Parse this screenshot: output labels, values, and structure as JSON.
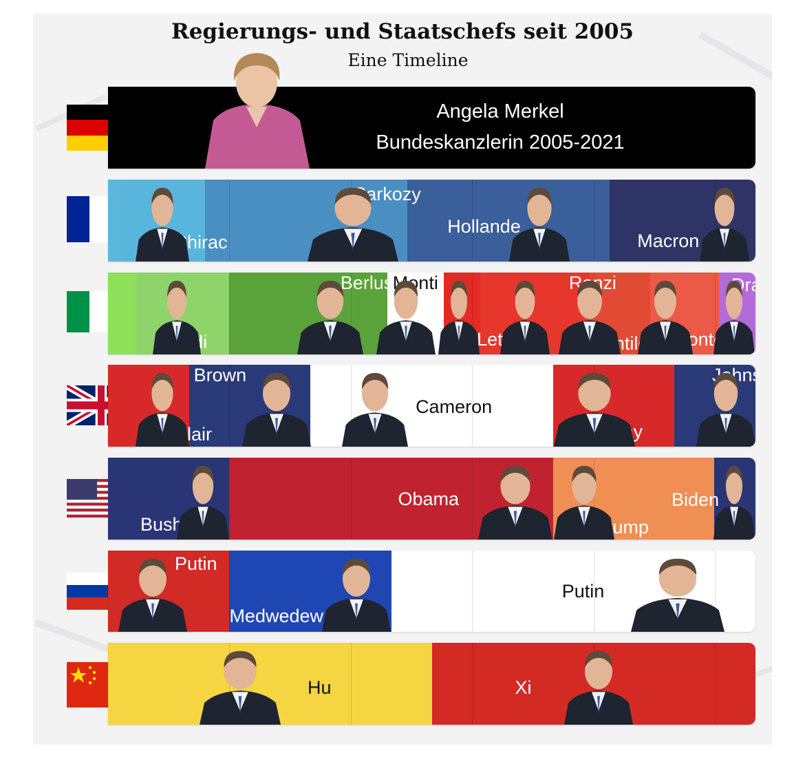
{
  "title": "Regierungs- und Staatschefs seit 2005",
  "subtitle": "Eine Timeline",
  "chart_data": {
    "type": "timeline",
    "title": "Regierungs- und Staatschefs seit 2005",
    "subtitle": "Eine Timeline",
    "countries": [
      {
        "flag": "germany",
        "leaders": [
          {
            "label": "Angela Merkel",
            "sublabel": "Bundeskanzlerin 2005-2021",
            "start": 2005.0,
            "end": 2021.0,
            "color": "#000000"
          }
        ]
      },
      {
        "flag": "france",
        "leaders": [
          {
            "label": "",
            "start": 2005.0,
            "end": 2005.4,
            "color": "#5bb8dc"
          },
          {
            "label": "Chirac",
            "start": 2005.4,
            "end": 2007.4,
            "color": "#58b5db"
          },
          {
            "label": "Sarkozy",
            "start": 2007.4,
            "end": 2012.4,
            "color": "#4a8fc2"
          },
          {
            "label": "Hollande",
            "start": 2012.4,
            "end": 2017.4,
            "color": "#3a5f9a"
          },
          {
            "label": "Macron",
            "start": 2017.4,
            "end": 2021.0,
            "color": "#2e3566"
          }
        ]
      },
      {
        "flag": "italy",
        "leaders": [
          {
            "label": "",
            "start": 2005.0,
            "end": 2005.7,
            "color": "#8fe05a"
          },
          {
            "label": "Prodi",
            "start": 2005.7,
            "end": 2008.0,
            "color": "#8fd46a"
          },
          {
            "label": "Berlusconi",
            "start": 2008.0,
            "end": 2011.9,
            "color": "#5aa33a"
          },
          {
            "label": "Monti",
            "start": 2011.9,
            "end": 2013.3,
            "color": "#ffffff"
          },
          {
            "label": "Letta",
            "start": 2013.3,
            "end": 2014.2,
            "color": "#e42a24"
          },
          {
            "label": "Renzi",
            "start": 2014.2,
            "end": 2016.9,
            "color": "#e7362c"
          },
          {
            "label": "Gentiloni",
            "start": 2016.9,
            "end": 2018.4,
            "color": "#e14a33"
          },
          {
            "label": "Conte",
            "start": 2018.4,
            "end": 2020.1,
            "color": "#eb5a46"
          },
          {
            "label": "Draghi",
            "start": 2020.1,
            "end": 2021.0,
            "color": "#b46ad8"
          }
        ]
      },
      {
        "flag": "uk",
        "leaders": [
          {
            "label": "Blair",
            "start": 2005.0,
            "end": 2007.0,
            "color": "#d8292a"
          },
          {
            "label": "Brown",
            "start": 2007.0,
            "end": 2010.0,
            "color": "#2a3a78"
          },
          {
            "label": "Cameron",
            "start": 2010.0,
            "end": 2016.0,
            "color": "#ffffff"
          },
          {
            "label": "May",
            "start": 2016.0,
            "end": 2019.0,
            "color": "#d8292a"
          },
          {
            "label": "Johnson",
            "start": 2019.0,
            "end": 2021.0,
            "color": "#2a3a78"
          }
        ]
      },
      {
        "flag": "usa",
        "leaders": [
          {
            "label": "Bush",
            "start": 2005.0,
            "end": 2008.0,
            "color": "#2a3576"
          },
          {
            "label": "Obama",
            "start": 2008.0,
            "end": 2016.0,
            "color": "#c0232f"
          },
          {
            "label": "Trump",
            "start": 2016.0,
            "end": 2021.0,
            "color": "#ef8f53"
          },
          {
            "label": "Biden",
            "start": 2021.0,
            "end": 2021.0,
            "color": "#2a3576"
          }
        ]
      },
      {
        "flag": "russia",
        "leaders": [
          {
            "label": "Putin",
            "start": 2005.0,
            "end": 2008.0,
            "color": "#d22a25"
          },
          {
            "label": "Medwedew",
            "start": 2008.0,
            "end": 2012.0,
            "color": "#1e47b4"
          },
          {
            "label": "Putin",
            "start": 2012.0,
            "end": 2021.0,
            "color": "#ffffff"
          }
        ]
      },
      {
        "flag": "china",
        "leaders": [
          {
            "label": "Hu",
            "start": 2005.0,
            "end": 2013.0,
            "color": "#f5d542"
          },
          {
            "label": "Xi",
            "start": 2013.0,
            "end": 2021.0,
            "color": "#d42a24"
          }
        ]
      }
    ]
  }
}
